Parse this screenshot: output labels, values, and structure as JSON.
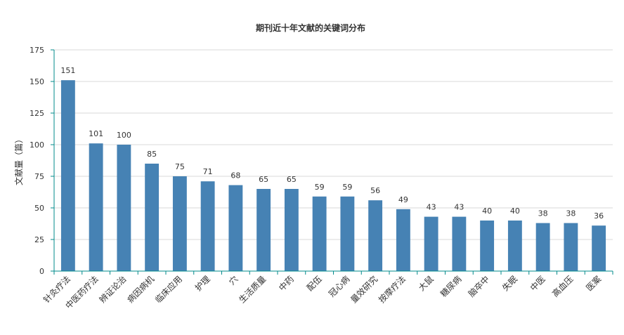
{
  "chart_data": {
    "type": "bar",
    "title": "期刊近十年文献的关键词分布",
    "xlabel": "",
    "ylabel": "文献量（篇）",
    "ylim": [
      0,
      175
    ],
    "yticks": [
      0,
      25,
      50,
      75,
      100,
      125,
      150,
      175
    ],
    "grid": true,
    "categories": [
      "针灸疗法",
      "中医药疗法",
      "辨证论治",
      "病因病机",
      "临床应用",
      "护理",
      "穴",
      "生活质量",
      "中药",
      "配伍",
      "冠心病",
      "量效研究",
      "按摩疗法",
      "大鼠",
      "糖尿病",
      "脑卒中",
      "失眠",
      "中医",
      "高血压",
      "医案"
    ],
    "values": [
      151,
      101,
      100,
      85,
      75,
      71,
      68,
      65,
      65,
      59,
      59,
      56,
      49,
      43,
      43,
      40,
      40,
      38,
      38,
      36
    ]
  },
  "colors": {
    "bar": "#4682b4",
    "axis": "#008b8b",
    "grid": "#d9d9d9"
  }
}
